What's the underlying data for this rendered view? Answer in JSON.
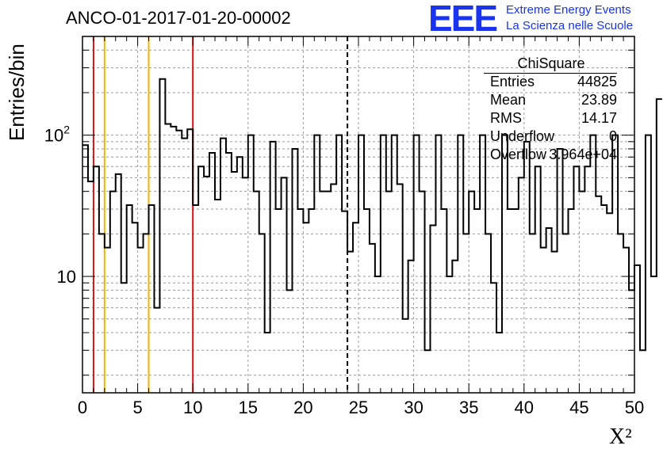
{
  "title": "ANCO-01-2017-01-20-00002",
  "logo": {
    "letters": "EEE",
    "line1": "Extreme Energy Events",
    "line2": "La Scienza nelle Scuole"
  },
  "colors": {
    "red": "#dd1111",
    "yellow": "#f2b400",
    "hist": "#000000",
    "logo": "#1a33ee",
    "grid": "#9a9a9a"
  },
  "stats": {
    "title": "ChiSquare",
    "rows": [
      {
        "key": "Entries",
        "value": "44825"
      },
      {
        "key": "Mean",
        "value": "23.89"
      },
      {
        "key": "RMS",
        "value": "14.17"
      },
      {
        "key": "Underflow",
        "value": "0"
      },
      {
        "key": "Overflow",
        "value": "3.964e+04"
      }
    ]
  },
  "chart_data": {
    "type": "histogram",
    "xlabel": "X²",
    "ylabel": "Entries/bin",
    "xlim": [
      0,
      50
    ],
    "ylim": [
      1.5,
      500
    ],
    "yscale": "log",
    "grid": true,
    "x_ticks": [
      0,
      5,
      10,
      15,
      20,
      25,
      30,
      35,
      40,
      45,
      50
    ],
    "y_tick_labels": [
      {
        "value": 10,
        "label": "10"
      },
      {
        "value": 100,
        "label": "10",
        "sup": "2"
      }
    ],
    "bin_width": 0.5,
    "bin_start": 0,
    "values": [
      85,
      47,
      60,
      20,
      16,
      40,
      53,
      9,
      32,
      24,
      16,
      20,
      32,
      6,
      250,
      120,
      115,
      108,
      95,
      110,
      32,
      60,
      51,
      75,
      35,
      95,
      75,
      55,
      70,
      50,
      100,
      40,
      20,
      4,
      90,
      30,
      50,
      8,
      80,
      30,
      24,
      30,
      100,
      40,
      40,
      45,
      100,
      29,
      15,
      24,
      100,
      30,
      17,
      10,
      100,
      40,
      100,
      45,
      5,
      13,
      100,
      40,
      3,
      23,
      100,
      30,
      10,
      13,
      100,
      20,
      40,
      30,
      100,
      20,
      9,
      4,
      100,
      30,
      30,
      50,
      90,
      20,
      60,
      16,
      22,
      15,
      80,
      20,
      30,
      60,
      40,
      60,
      100,
      37,
      32,
      28,
      100,
      20,
      16,
      8,
      12,
      3,
      100,
      10,
      180
    ],
    "vertical_lines": [
      {
        "x": 1,
        "color": "red",
        "style": "solid"
      },
      {
        "x": 2,
        "color": "yellow",
        "style": "solid"
      },
      {
        "x": 6,
        "color": "yellow",
        "style": "solid"
      },
      {
        "x": 10,
        "color": "red",
        "style": "solid"
      },
      {
        "x": 24,
        "color": "black",
        "style": "dashed"
      }
    ]
  }
}
